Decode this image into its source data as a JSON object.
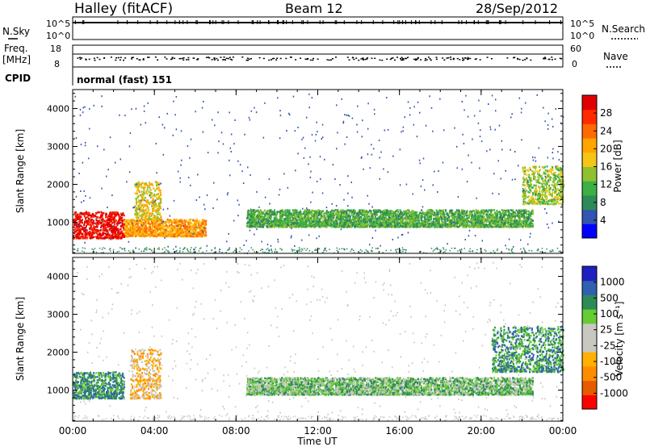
{
  "header": {
    "station": "Halley (fitACF)",
    "beam": "Beam 12",
    "date": "28/Sep/2012"
  },
  "noise_panel": {
    "left_label": "N.Sky",
    "left_ticks": [
      "10^5",
      "10^0"
    ],
    "right_ticks": [
      "10^5",
      "10^0"
    ],
    "right_label": "N.Search"
  },
  "freq_panel": {
    "left_label_1": "Freq.",
    "left_label_2": "[MHz]",
    "left_ticks": [
      "18",
      "8"
    ],
    "right_ticks": [
      "60",
      "0"
    ],
    "right_label": "Nave"
  },
  "cpid": {
    "label": "CPID",
    "value": "normal (fast) 151"
  },
  "colors": {
    "power": [
      "#0000ff",
      "#3355b0",
      "#2e8b57",
      "#3cb043",
      "#90c030",
      "#f5c518",
      "#ffa500",
      "#ff6a00",
      "#ff2a00",
      "#e00000"
    ],
    "velocity": [
      "#ff0000",
      "#e85a00",
      "#ff8c00",
      "#ffb000",
      "#c8c8c0",
      "#c8c8c0",
      "#66cc33",
      "#2e8b57",
      "#3060b0",
      "#2020c0"
    ],
    "ground_scatter": "#c8c8c0"
  },
  "chart_data": [
    {
      "type": "heatmap",
      "panel": "power",
      "ylabel": "Slant Range [km]",
      "yticks": [
        "1000",
        "2000",
        "3000",
        "4000"
      ],
      "ylim": [
        180,
        4500
      ],
      "x": [
        "00:00",
        "04:00",
        "08:00",
        "12:00",
        "16:00",
        "20:00",
        "00:00"
      ],
      "colorbar_label": "Power [dB]",
      "colorbar_ticks": [
        "4",
        "8",
        "12",
        "16",
        "20",
        "24",
        "28"
      ],
      "features": [
        {
          "hours": [
            0.0,
            2.5
          ],
          "range_km": [
            600,
            1300
          ],
          "level": "28"
        },
        {
          "hours": [
            2.5,
            6.5
          ],
          "range_km": [
            650,
            1100
          ],
          "level": "20"
        },
        {
          "hours": [
            3.0,
            4.3
          ],
          "range_km": [
            1100,
            2100
          ],
          "level": "16"
        },
        {
          "hours": [
            8.5,
            22.5
          ],
          "range_km": [
            900,
            1350
          ],
          "level": "8"
        },
        {
          "hours": [
            22.0,
            24.0
          ],
          "range_km": [
            1500,
            2500
          ],
          "level": "12"
        }
      ]
    },
    {
      "type": "heatmap",
      "panel": "velocity",
      "ylabel": "Slant Range [km]",
      "yticks": [
        "1000",
        "2000",
        "3000",
        "4000"
      ],
      "ylim": [
        180,
        4500
      ],
      "x": [
        "00:00",
        "04:00",
        "08:00",
        "12:00",
        "16:00",
        "20:00",
        "00:00"
      ],
      "xlabel": "Time UT",
      "colorbar_label": "Velocity [m s⁻¹]",
      "colorbar_ticks": [
        "-1000",
        "-500",
        "-100",
        "-25",
        "25",
        "100",
        "500",
        "1000"
      ],
      "features": [
        {
          "hours": [
            0.0,
            2.5
          ],
          "range_km": [
            800,
            1500
          ],
          "level": "100"
        },
        {
          "hours": [
            2.8,
            4.3
          ],
          "range_km": [
            800,
            2100
          ],
          "level": "-100"
        },
        {
          "hours": [
            8.5,
            22.5
          ],
          "range_km": [
            900,
            1350
          ],
          "level": "25"
        },
        {
          "hours": [
            20.5,
            24.0
          ],
          "range_km": [
            1500,
            2700
          ],
          "level": "100"
        }
      ]
    }
  ]
}
